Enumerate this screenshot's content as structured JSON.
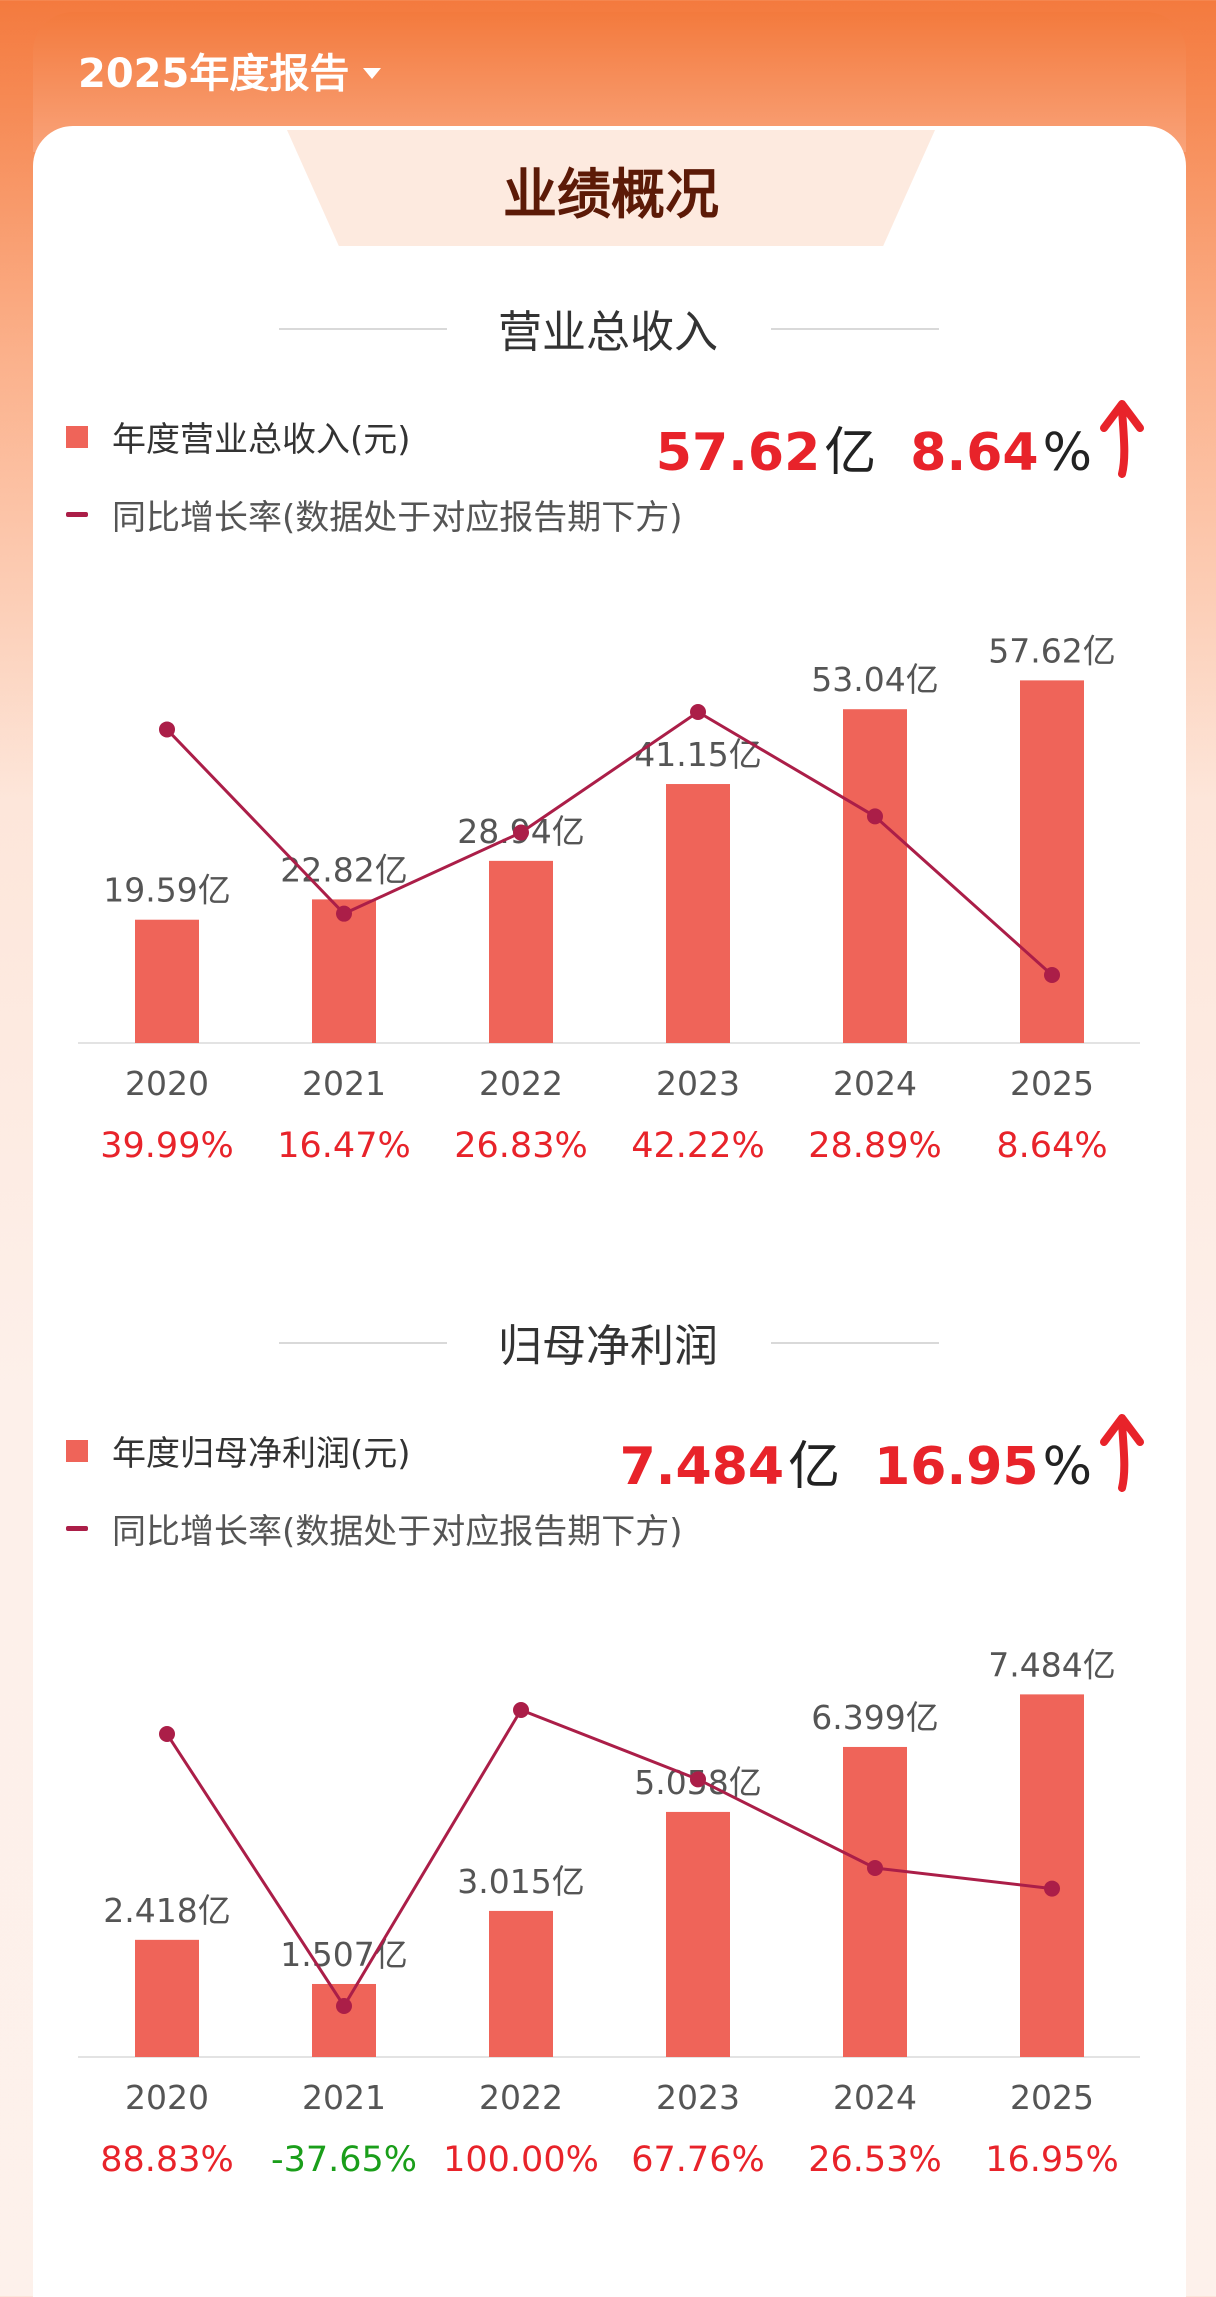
{
  "header": {
    "year_selector": "2025年度报告"
  },
  "tab": {
    "title": "业绩概况"
  },
  "colors": {
    "bar": "#ef6459",
    "line": "#ab1e48",
    "positive": "#e8232a",
    "negative": "#1a9e1a",
    "accent": "#f37a3d"
  },
  "revenue": {
    "section_title": "营业总收入",
    "legend_bar": "年度营业总收入(元)",
    "legend_line": "同比增长率(数据处于对应报告期下方)",
    "headline_value": "57.62",
    "headline_unit": "亿",
    "headline_growth": "8.64",
    "headline_growth_unit": "%"
  },
  "profit": {
    "section_title": "归母净利润",
    "legend_bar": "年度归母净利润(元)",
    "legend_line": "同比增长率(数据处于对应报告期下方)",
    "headline_value": "7.484",
    "headline_unit": "亿",
    "headline_growth": "16.95",
    "headline_growth_unit": "%"
  },
  "chart_data": [
    {
      "type": "bar",
      "categories": [
        "2020",
        "2021",
        "2022",
        "2023",
        "2024",
        "2025"
      ],
      "series": [
        {
          "name": "年度营业总收入(元)",
          "values": [
            19.59,
            22.82,
            28.94,
            41.15,
            53.04,
            57.62
          ],
          "labels": [
            "19.59亿",
            "22.82亿",
            "28.94亿",
            "41.15亿",
            "53.04亿",
            "57.62亿"
          ]
        },
        {
          "name": "同比增长率(数据处于对应报告期下方)",
          "type": "line",
          "values": [
            39.99,
            16.47,
            26.83,
            42.22,
            28.89,
            8.64
          ],
          "labels": [
            "39.99%",
            "16.47%",
            "26.83%",
            "42.22%",
            "28.89%",
            "8.64%"
          ]
        }
      ]
    },
    {
      "type": "bar",
      "categories": [
        "2020",
        "2021",
        "2022",
        "2023",
        "2024",
        "2025"
      ],
      "series": [
        {
          "name": "年度归母净利润(元)",
          "values": [
            2.418,
            1.507,
            3.015,
            5.058,
            6.399,
            7.484
          ],
          "labels": [
            "2.418亿",
            "1.507亿",
            "3.015亿",
            "5.058亿",
            "6.399亿",
            "7.484亿"
          ]
        },
        {
          "name": "同比增长率(数据处于对应报告期下方)",
          "type": "line",
          "values": [
            88.83,
            -37.65,
            100.0,
            67.76,
            26.53,
            16.95
          ],
          "labels": [
            "88.83%",
            "-37.65%",
            "100.00%",
            "67.76%",
            "26.53%",
            "16.95%"
          ]
        }
      ]
    }
  ]
}
